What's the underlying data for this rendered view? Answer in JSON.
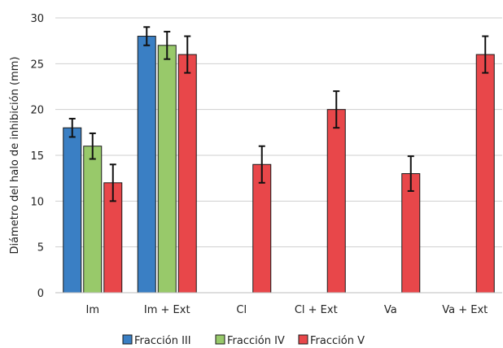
{
  "chart_data": {
    "type": "bar",
    "title": "",
    "xlabel": "",
    "ylabel": "Diámetro del halo de inhibición (mm)",
    "ylim": [
      0,
      30
    ],
    "yticks": [
      0,
      5,
      10,
      15,
      20,
      25,
      30
    ],
    "grid": true,
    "legend_position": "bottom",
    "categories": [
      "Im",
      "Im + Ext",
      "Cl",
      "Cl + Ext",
      "Va",
      "Va + Ext"
    ],
    "series": [
      {
        "name": "Fracción III",
        "color": "#3a7fc4",
        "values": [
          18,
          28,
          null,
          null,
          null,
          null
        ],
        "errors": [
          1.0,
          1.0,
          null,
          null,
          null,
          null
        ]
      },
      {
        "name": "Fracción IV",
        "color": "#98c96a",
        "values": [
          16,
          27,
          null,
          null,
          null,
          null
        ],
        "errors": [
          1.4,
          1.5,
          null,
          null,
          null,
          null
        ]
      },
      {
        "name": "Fracción V",
        "color": "#e8474a",
        "values": [
          12,
          26,
          14,
          20,
          13,
          26
        ],
        "errors": [
          2.0,
          2.0,
          2.0,
          2.0,
          1.9,
          2.0
        ]
      }
    ]
  }
}
